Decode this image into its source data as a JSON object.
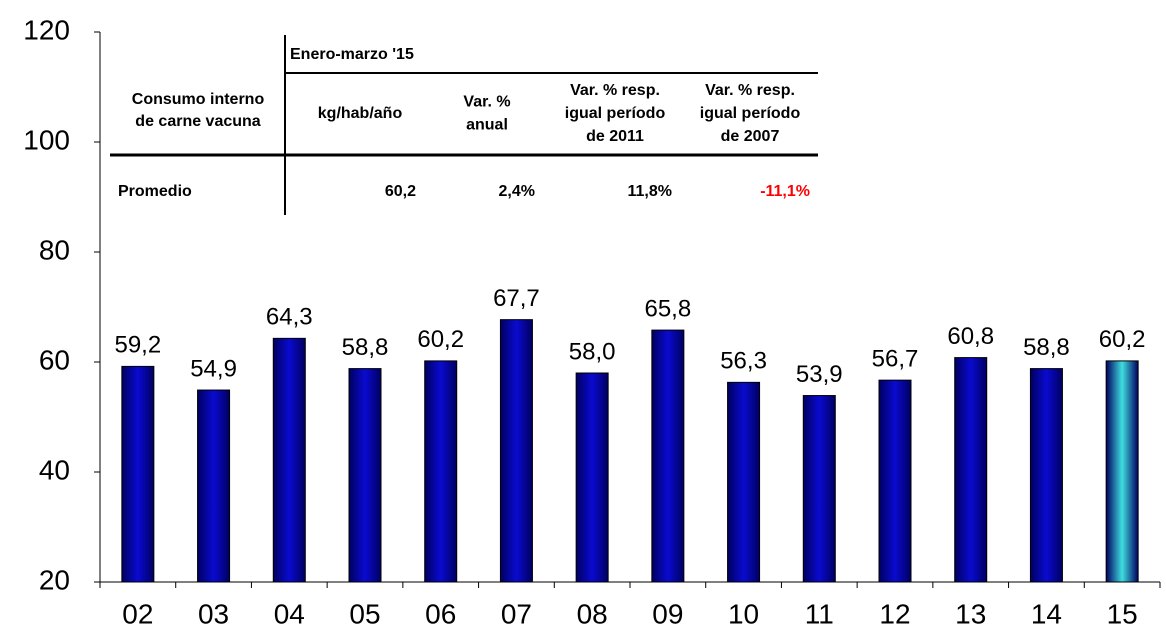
{
  "chart_data": {
    "type": "bar",
    "categories": [
      "02",
      "03",
      "04",
      "05",
      "06",
      "07",
      "08",
      "09",
      "10",
      "11",
      "12",
      "13",
      "14",
      "15"
    ],
    "values": [
      59.2,
      54.9,
      64.3,
      58.8,
      60.2,
      67.7,
      58.0,
      65.8,
      56.3,
      53.9,
      56.7,
      60.8,
      58.8,
      60.2
    ],
    "value_labels": [
      "59,2",
      "54,9",
      "64,3",
      "58,8",
      "60,2",
      "67,7",
      "58,0",
      "65,8",
      "56,3",
      "53,9",
      "56,7",
      "60,8",
      "58,8",
      "60,2"
    ],
    "colors": [
      "#0a0ad0",
      "#0a0ad0",
      "#0a0ad0",
      "#0a0ad0",
      "#0a0ad0",
      "#0a0ad0",
      "#0a0ad0",
      "#0a0ad0",
      "#0a0ad0",
      "#0a0ad0",
      "#0a0ad0",
      "#0a0ad0",
      "#0a0ad0",
      "#3fdde0"
    ],
    "ylim": [
      20,
      120
    ],
    "yticks": [
      20,
      40,
      60,
      80,
      100,
      120
    ]
  },
  "table": {
    "group_header": "Enero-marzo '15",
    "row_header": [
      "Consumo interno",
      "de carne vacuna"
    ],
    "columns": [
      [
        "kg/hab/año"
      ],
      [
        "Var. %",
        "anual"
      ],
      [
        "Var. % resp.",
        "igual período",
        "de 2011"
      ],
      [
        "Var. % resp.",
        "igual período",
        "de 2007"
      ]
    ],
    "row_label": "Promedio",
    "cells": [
      "60,2",
      "2,4%",
      "11,8%",
      "-11,1%"
    ],
    "cell_colors": [
      "#000000",
      "#000000",
      "#000000",
      "#ff0000"
    ]
  }
}
